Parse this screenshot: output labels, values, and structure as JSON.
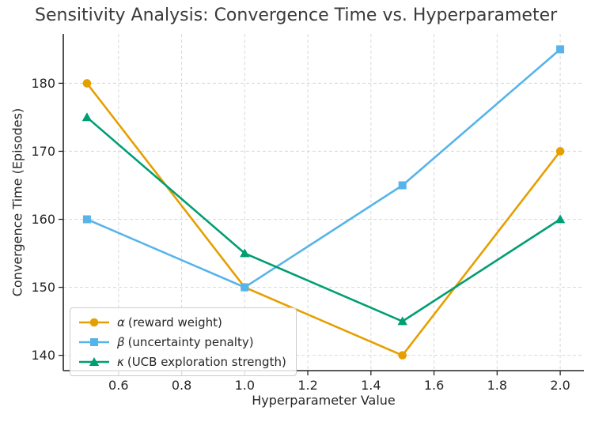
{
  "chart_data": {
    "type": "line",
    "title": "Sensitivity Analysis: Convergence Time vs. Hyperparameter",
    "xlabel": "Hyperparameter Value",
    "ylabel": "Convergence Time (Episodes)",
    "x": [
      0.5,
      1.0,
      1.5,
      2.0
    ],
    "series": [
      {
        "name": "alpha",
        "symbol": "α",
        "label": "(reward weight)",
        "marker": "circle",
        "color": "#E69F00",
        "values": [
          180,
          150,
          140,
          170
        ]
      },
      {
        "name": "beta",
        "symbol": "β",
        "label": "(uncertainty penalty)",
        "marker": "square",
        "color": "#56B4E9",
        "values": [
          160,
          150,
          165,
          185
        ]
      },
      {
        "name": "kappa",
        "symbol": "κ",
        "label": "(UCB exploration strength)",
        "marker": "triangle",
        "color": "#009E73",
        "values": [
          175,
          155,
          145,
          160
        ]
      }
    ],
    "xlim": [
      0.425,
      2.075
    ],
    "ylim": [
      137.75,
      187.25
    ],
    "x_ticks": [
      0.6,
      0.8,
      1.0,
      1.2,
      1.4,
      1.6,
      1.8,
      2.0
    ],
    "x_tick_labels": [
      "0.6",
      "0.8",
      "1.0",
      "1.2",
      "1.4",
      "1.6",
      "1.8",
      "2.0"
    ],
    "y_ticks": [
      140,
      150,
      160,
      170,
      180
    ],
    "y_tick_labels": [
      "140",
      "150",
      "160",
      "170",
      "180"
    ],
    "grid": true,
    "legend_position": "lower left"
  },
  "colors": {
    "grid": "#dcdcdc",
    "spine": "#262626",
    "tick_text": "#262626",
    "title_text": "#3a3a3a",
    "legend_border": "#cccccc",
    "background": "#ffffff"
  }
}
